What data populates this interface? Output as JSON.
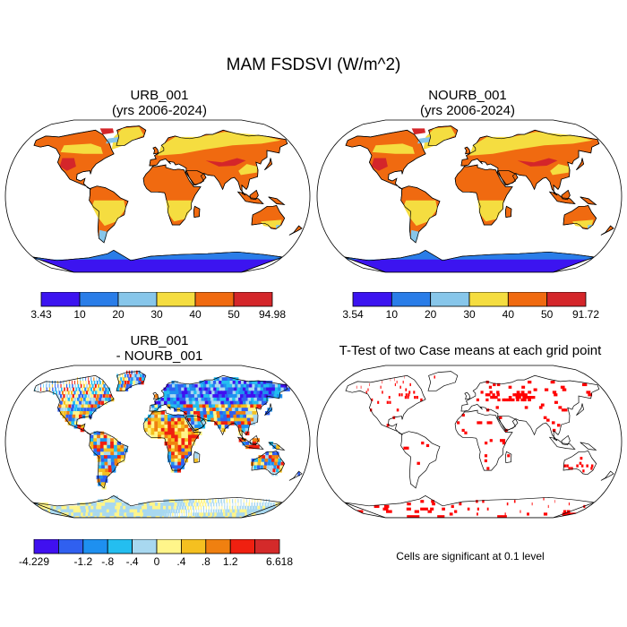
{
  "main_title": "MAM FSDSVI (W/m^2)",
  "panels": {
    "urb": {
      "title_line1": "URB_001",
      "title_line2": "(yrs 2006-2024)"
    },
    "nourb": {
      "title_line1": "NOURB_001",
      "title_line2": "(yrs 2006-2024)"
    },
    "diff": {
      "title_line1": "URB_001",
      "title_line2": "- NOURB_001"
    },
    "ttest": {
      "title_line1": "T-Test of two Case means at each grid point"
    }
  },
  "colorbars": {
    "urb": {
      "colors": [
        "#3c14f0",
        "#2a7de8",
        "#87c6ea",
        "#f5dd40",
        "#f06a10",
        "#d4262a"
      ],
      "labels": [
        "3.43",
        "10",
        "20",
        "30",
        "40",
        "50",
        "94.98"
      ]
    },
    "nourb": {
      "colors": [
        "#3c14f0",
        "#2a7de8",
        "#87c6ea",
        "#f5dd40",
        "#f06a10",
        "#d4262a"
      ],
      "labels": [
        "3.54",
        "10",
        "20",
        "30",
        "40",
        "50",
        "91.72"
      ]
    },
    "diff": {
      "colors": [
        "#4010f0",
        "#3060f0",
        "#1e90f0",
        "#24bef0",
        "#a8d8f0",
        "#fff58a",
        "#f5c020",
        "#f08010",
        "#f02010",
        "#d42a2a"
      ],
      "labels": [
        "-4.229",
        "",
        "-1.2",
        "-.8",
        "-.4",
        "0",
        ".4",
        ".8",
        "1.2",
        "",
        "6.618"
      ]
    }
  },
  "ttest_note": "Cells are significant at 0.1 level",
  "map_colors": {
    "ocean": "#ffffff",
    "antarctica_mean": "#3c14f0",
    "coast": "#000000",
    "significance": "#ff0000"
  }
}
